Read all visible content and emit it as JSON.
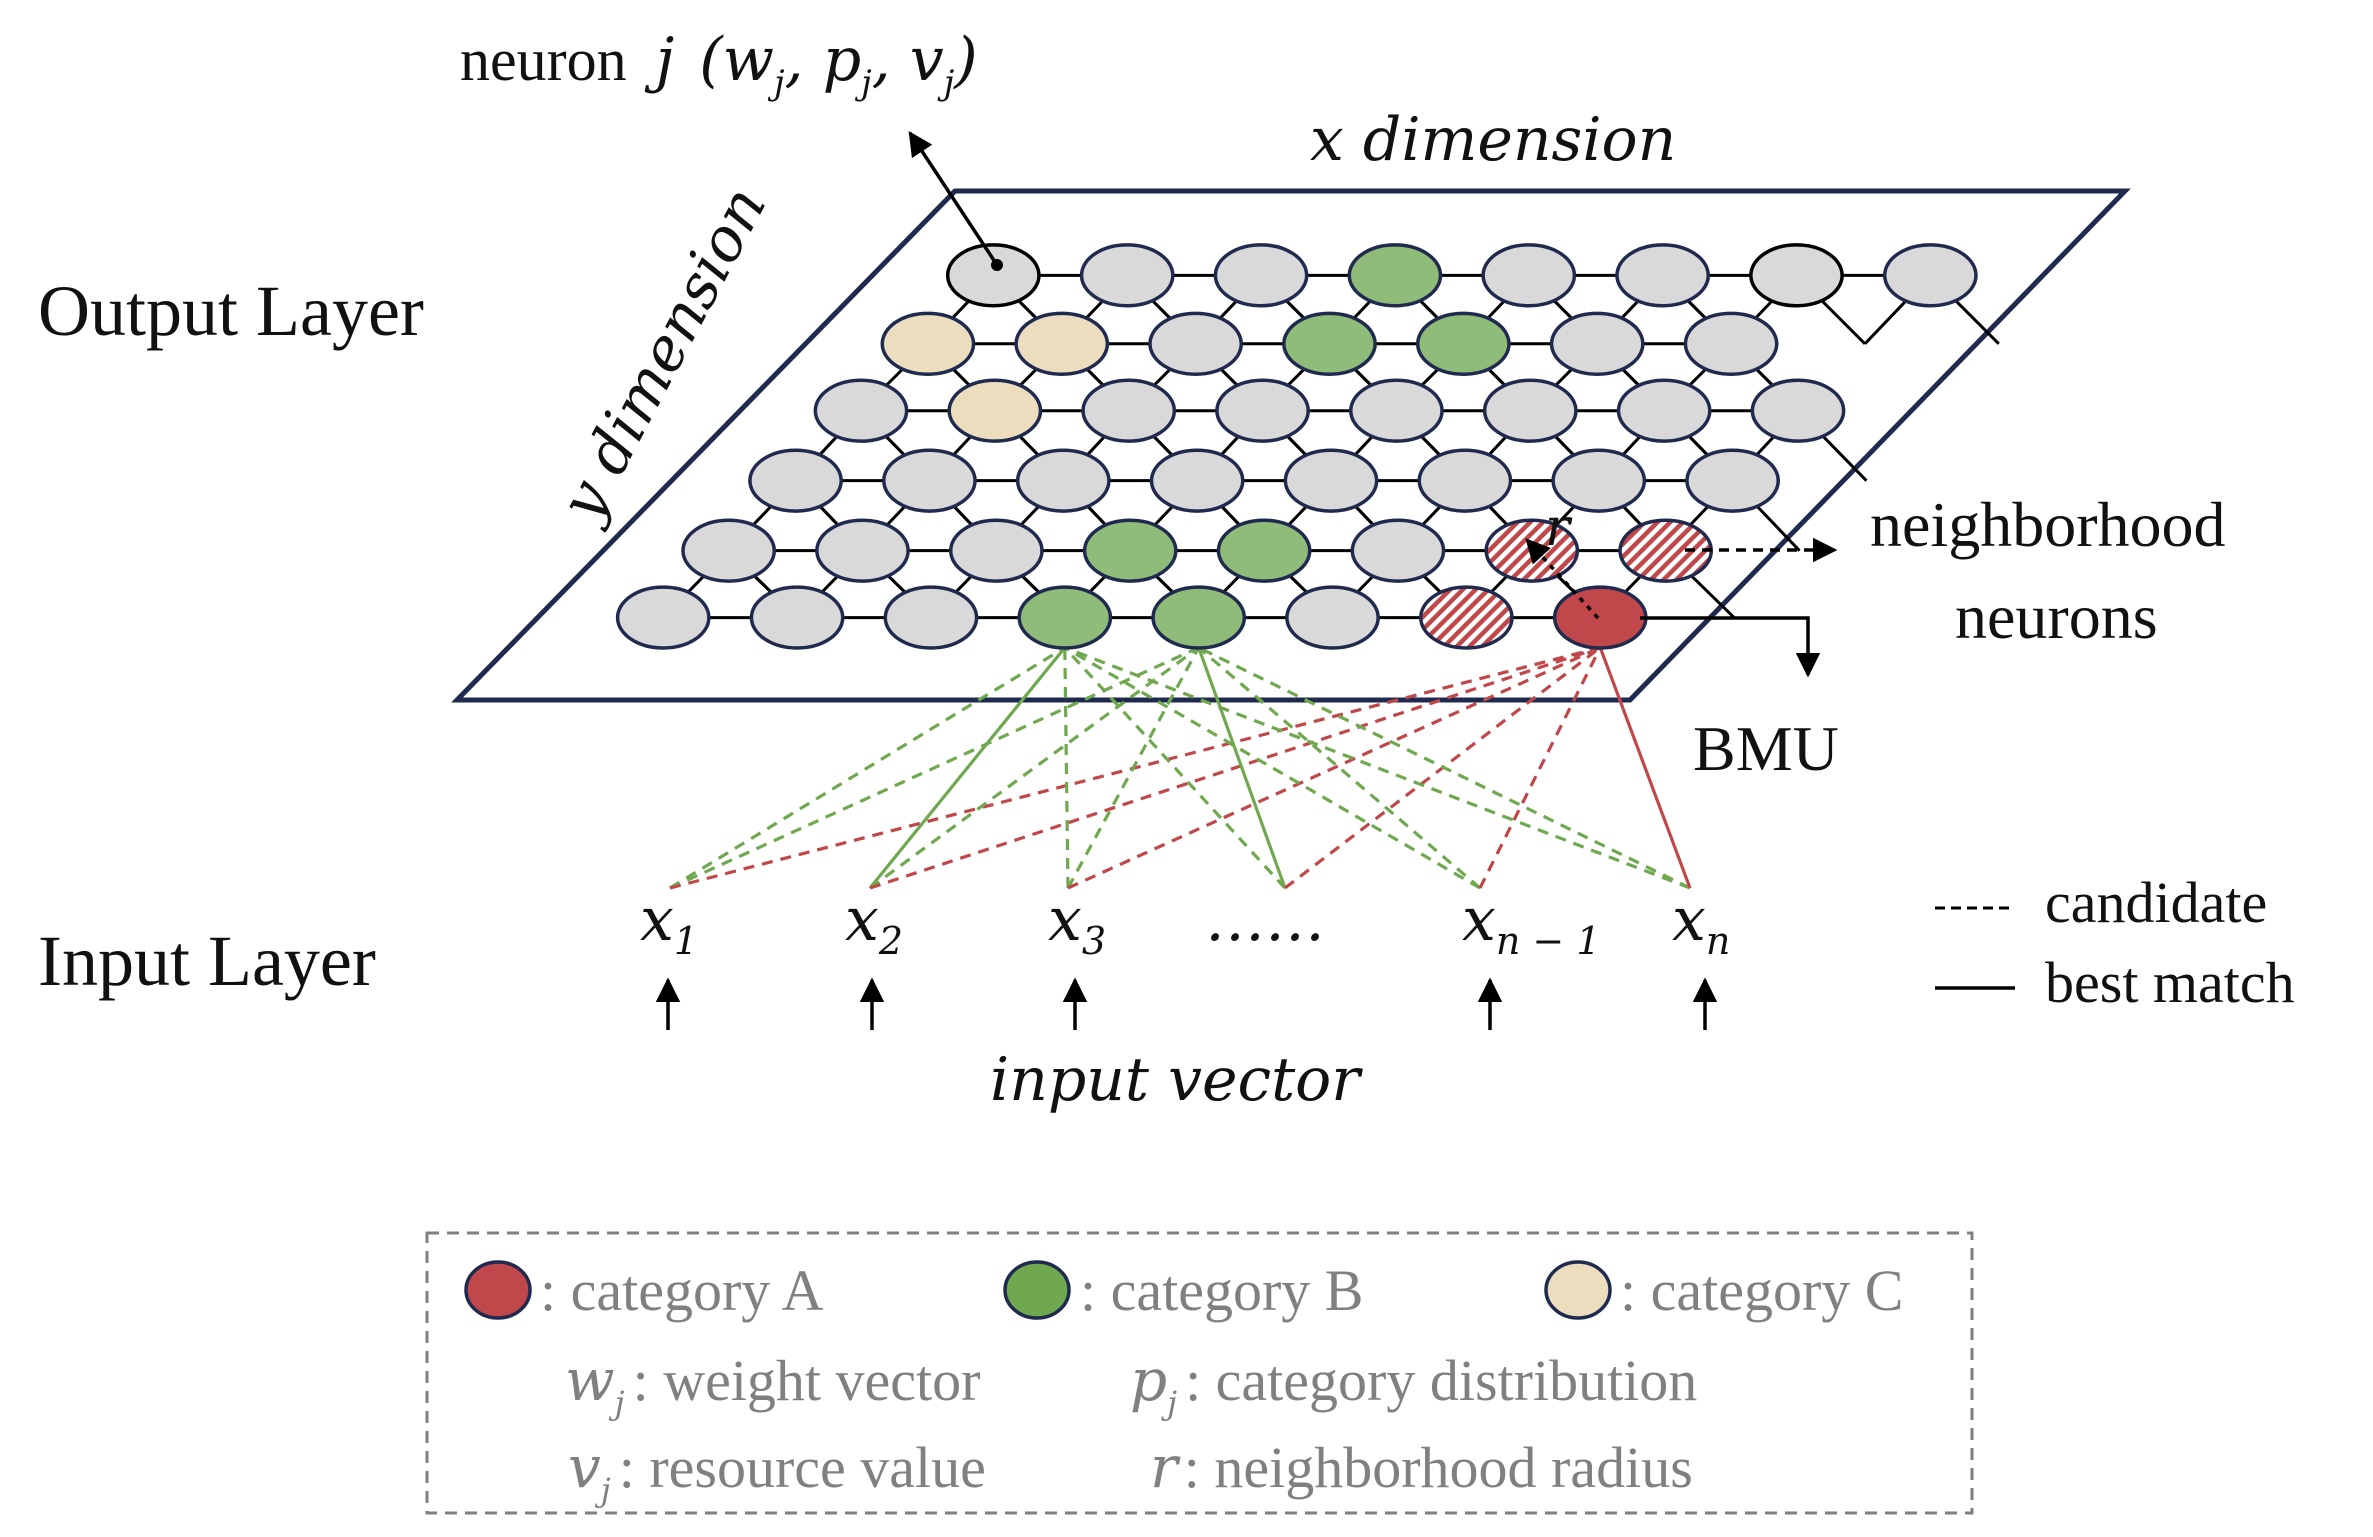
{
  "layers": {
    "output_label": "Output Layer",
    "input_label": "Input Layer"
  },
  "grid_text": {
    "neuron_word": "neuron",
    "neuron_j": "j",
    "x_dimension": "x dimension",
    "y_dimension": "y dimension",
    "radius_symbol": "r",
    "bmu": "BMU",
    "neighborhood_line1": "neighborhood",
    "neighborhood_line2": "neurons"
  },
  "inputs": {
    "vector_label": "input vector",
    "ellipsis": "……",
    "items": [
      {
        "base": "x",
        "sub": "1"
      },
      {
        "base": "x",
        "sub": "2"
      },
      {
        "base": "x",
        "sub": "3"
      },
      {
        "base": "x",
        "sub": "n − 1"
      },
      {
        "base": "x",
        "sub": "n"
      }
    ]
  },
  "line_key": {
    "candidate": "candidate",
    "best_match": "best match"
  },
  "legend": {
    "cat_a": ": category A",
    "cat_b": ": category B",
    "cat_c": ": category C",
    "w_desc": ": weight vector",
    "p_desc": ": category distribution",
    "v_desc": ": resource value",
    "r_desc": ": neighborhood radius",
    "w_sym": "w",
    "p_sym": "p",
    "v_sym": "v",
    "r_sym": "r",
    "sub_j": "j"
  },
  "colors": {
    "category_a": "#C0474A",
    "category_b": "#8FBC79",
    "category_c": "#EBDDBD",
    "neuron_default": "#D9D9D9",
    "outline": "#1F2A4E",
    "candidate_green": "#70A84F",
    "candidate_red": "#C0474A"
  }
}
